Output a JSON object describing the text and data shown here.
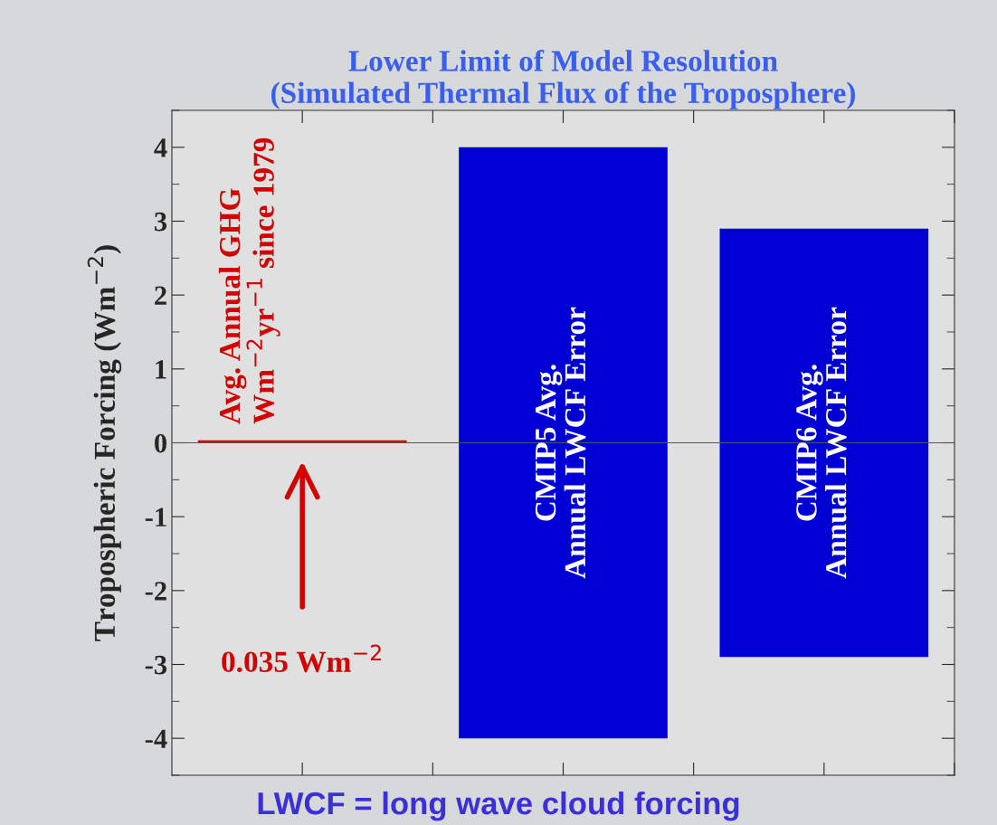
{
  "chart_data": {
    "type": "bar",
    "title": "Lower Limit of Model Resolution\n(Simulated Thermal Flux of the Troposphere)",
    "ylabel": "Tropospheric Forcing (Wm$^{−2}$)",
    "categories": [
      null,
      null,
      null
    ],
    "base": [
      0,
      -4.0,
      -2.9
    ],
    "values": [
      0.035,
      8.0,
      5.8
    ],
    "colors": [
      "#d40000",
      "#0000d4",
      "#0000d4"
    ],
    "ylim": [
      -4.5,
      4.5
    ],
    "yticks": [
      -4,
      -3,
      -2,
      -1,
      0,
      1,
      2,
      3,
      4
    ],
    "ref_lines": [
      {
        "axis": "y",
        "value": 0,
        "color": "#555555"
      }
    ],
    "tick_labels": "y",
    "annotations": [
      "Avg. Annual GHG\nWm$^{−2}$yr$^{−1}$ since 1979",
      "0.035 Wm$^{−2}$",
      "CMIP5 Avg.\nAnnual LWCF Error",
      "CMIP6 Avg.\nAnnual LWCF Error",
      "LWCF = long wave cloud forcing"
    ],
    "grid": false,
    "legend": false
  }
}
